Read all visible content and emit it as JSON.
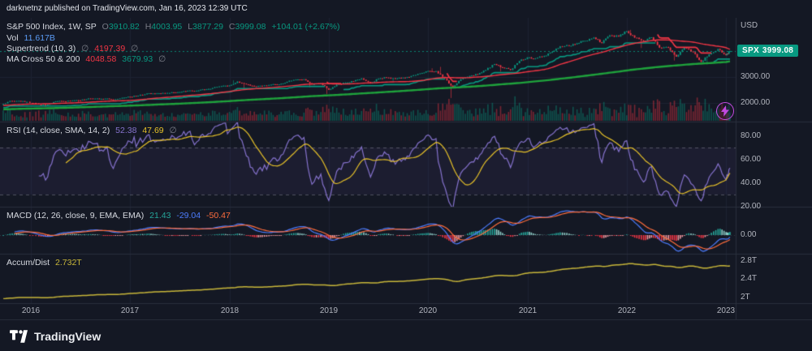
{
  "topbar": {
    "text": "darknetnz published on TradingView.com, Jan 16, 2023 12:39 UTC"
  },
  "footer": {
    "brand": "TradingView"
  },
  "glyphs": {
    "hidden": "∅"
  },
  "colors": {
    "up": "#089981",
    "down": "#f23645",
    "ma50": "#f23645",
    "ma200": "#1fa33c",
    "rsi": "#8673ce",
    "rsi_sma": "#e7c229",
    "macd": "#4d7dff",
    "signal": "#ff6d3d",
    "hist_up": "#26a69a",
    "hist_up_weak": "#8fd0ca",
    "hist_down": "#f23645",
    "hist_down_weak": "#f49aa1",
    "accdist": "#c9b73a",
    "vol_up": "rgba(8,153,129,0.45)",
    "vol_down": "rgba(242,54,69,0.45)",
    "grid": "#1c2232",
    "separator": "#2a2f3d",
    "badge_bg": "#089981",
    "flash": "#c24ae0"
  },
  "panes": {
    "price": {
      "legend": {
        "title": "S&P 500 Index, 1W, SP",
        "o_label": "O",
        "o": "3910.82",
        "h_label": "H",
        "h": "4003.95",
        "l_label": "L",
        "l": "3877.29",
        "c_label": "C",
        "c": "3999.08",
        "change": "+104.01 (+2.67%)",
        "vol_label": "Vol",
        "vol": "11.617B",
        "supertrend_label": "Supertrend (10, 3)",
        "supertrend_value": "4197.39",
        "ma_label": "MA Cross 50 & 200",
        "ma50_value": "4048.58",
        "ma200_value": "3679.93"
      },
      "axis": {
        "currency": "USD",
        "labels": [
          "3000.00",
          "2000.00"
        ],
        "badge": {
          "symbol": "SPX",
          "price": "3999.08"
        }
      }
    },
    "rsi": {
      "legend": {
        "title": "RSI (14, close, SMA, 14, 2)",
        "rsi_value": "52.38",
        "sma_value": "47.69"
      },
      "axis_labels": [
        "80.00",
        "60.00",
        "40.00",
        "20.00"
      ]
    },
    "macd": {
      "legend": {
        "title": "MACD (12, 26, close, 9, EMA, EMA)",
        "hist_value": "21.43",
        "macd_value": "-29.04",
        "signal_value": "-50.47"
      },
      "axis_labels": [
        "0.00"
      ]
    },
    "accdist": {
      "legend": {
        "title": "Accum/Dist",
        "value": "2.732T"
      },
      "axis_labels": [
        "2.8T",
        "2.4T",
        "2T"
      ]
    }
  },
  "time_axis": {
    "years": [
      "2016",
      "2017",
      "2018",
      "2019",
      "2020",
      "2021",
      "2022",
      "2023"
    ]
  },
  "chart_data": {
    "type": "candlestick",
    "title": "S&P 500 Index, 1W, SP",
    "interval": "1W",
    "x_axis": {
      "labels": [
        "2016",
        "2017",
        "2018",
        "2019",
        "2020",
        "2021",
        "2022",
        "2023"
      ]
    },
    "y_axis": {
      "currency": "USD",
      "visible_ticks": [
        3000,
        2000
      ]
    },
    "ohlc_last": {
      "open": 3910.82,
      "high": 4003.95,
      "low": 3877.29,
      "close": 3999.08,
      "change": 104.01,
      "change_pct": 2.67
    },
    "volume_last": "11.617B",
    "indicators": {
      "supertrend": {
        "params": [
          10,
          3
        ],
        "value": 4197.39
      },
      "ma_cross": {
        "ma50": 4048.58,
        "ma200": 3679.93
      },
      "rsi": {
        "params": [
          14,
          "close",
          "SMA",
          14,
          2
        ],
        "value": 52.38,
        "sma": 47.69,
        "bands": [
          70,
          30
        ],
        "scale_ticks": [
          80,
          60,
          40,
          20
        ]
      },
      "macd": {
        "params": [
          12,
          26,
          "close",
          9,
          "EMA",
          "EMA"
        ],
        "histogram": 21.43,
        "macd": -29.04,
        "signal": -50.47,
        "scale_ticks": [
          0
        ]
      },
      "accum_dist": {
        "value": "2.732T",
        "scale_ticks": [
          "2.8T",
          "2.4T",
          "2T"
        ]
      }
    },
    "monthly_close_anchors": [
      {
        "t": 2015.7,
        "c": 1920
      },
      {
        "t": 2015.79,
        "c": 2079
      },
      {
        "t": 2015.88,
        "c": 2080
      },
      {
        "t": 2015.96,
        "c": 2044
      },
      {
        "t": 2016.08,
        "c": 1940
      },
      {
        "t": 2016.17,
        "c": 1932,
        "lo": 1829
      },
      {
        "t": 2016.25,
        "c": 2060
      },
      {
        "t": 2016.33,
        "c": 2065
      },
      {
        "t": 2016.42,
        "c": 2097
      },
      {
        "t": 2016.5,
        "c": 2099,
        "lo": 1992
      },
      {
        "t": 2016.58,
        "c": 2174
      },
      {
        "t": 2016.67,
        "c": 2171
      },
      {
        "t": 2016.75,
        "c": 2168
      },
      {
        "t": 2016.83,
        "c": 2126
      },
      {
        "t": 2016.92,
        "c": 2199
      },
      {
        "t": 2017.0,
        "c": 2239
      },
      {
        "t": 2017.08,
        "c": 2279
      },
      {
        "t": 2017.17,
        "c": 2364
      },
      {
        "t": 2017.25,
        "c": 2363
      },
      {
        "t": 2017.33,
        "c": 2384
      },
      {
        "t": 2017.42,
        "c": 2412
      },
      {
        "t": 2017.5,
        "c": 2423
      },
      {
        "t": 2017.58,
        "c": 2470
      },
      {
        "t": 2017.67,
        "c": 2472
      },
      {
        "t": 2017.75,
        "c": 2519
      },
      {
        "t": 2017.83,
        "c": 2575
      },
      {
        "t": 2017.92,
        "c": 2648
      },
      {
        "t": 2018.0,
        "c": 2674
      },
      {
        "t": 2018.08,
        "c": 2824,
        "hi": 2872
      },
      {
        "t": 2018.17,
        "c": 2714,
        "lo": 2533
      },
      {
        "t": 2018.25,
        "c": 2641
      },
      {
        "t": 2018.33,
        "c": 2648
      },
      {
        "t": 2018.42,
        "c": 2705
      },
      {
        "t": 2018.5,
        "c": 2718
      },
      {
        "t": 2018.58,
        "c": 2816
      },
      {
        "t": 2018.67,
        "c": 2902
      },
      {
        "t": 2018.75,
        "c": 2914
      },
      {
        "t": 2018.83,
        "c": 2712,
        "lo": 2604
      },
      {
        "t": 2018.92,
        "c": 2760
      },
      {
        "t": 2019.0,
        "c": 2507,
        "lo": 2346
      },
      {
        "t": 2019.08,
        "c": 2704
      },
      {
        "t": 2019.17,
        "c": 2784
      },
      {
        "t": 2019.25,
        "c": 2834
      },
      {
        "t": 2019.33,
        "c": 2946
      },
      {
        "t": 2019.42,
        "c": 2752
      },
      {
        "t": 2019.5,
        "c": 2942
      },
      {
        "t": 2019.58,
        "c": 2980
      },
      {
        "t": 2019.67,
        "c": 2926,
        "lo": 2822
      },
      {
        "t": 2019.75,
        "c": 2977
      },
      {
        "t": 2019.83,
        "c": 3038
      },
      {
        "t": 2019.92,
        "c": 3141
      },
      {
        "t": 2020.0,
        "c": 3231
      },
      {
        "t": 2020.08,
        "c": 3226,
        "hi": 3337
      },
      {
        "t": 2020.17,
        "c": 2954,
        "hi": 3393
      },
      {
        "t": 2020.25,
        "c": 2585,
        "lo": 2191
      },
      {
        "t": 2020.33,
        "c": 2912
      },
      {
        "t": 2020.42,
        "c": 3044
      },
      {
        "t": 2020.5,
        "c": 3100
      },
      {
        "t": 2020.58,
        "c": 3271
      },
      {
        "t": 2020.67,
        "c": 3500
      },
      {
        "t": 2020.75,
        "c": 3363,
        "lo": 3209
      },
      {
        "t": 2020.83,
        "c": 3270
      },
      {
        "t": 2020.92,
        "c": 3622
      },
      {
        "t": 2021.0,
        "c": 3756
      },
      {
        "t": 2021.08,
        "c": 3714
      },
      {
        "t": 2021.17,
        "c": 3811
      },
      {
        "t": 2021.25,
        "c": 3973
      },
      {
        "t": 2021.33,
        "c": 4181
      },
      {
        "t": 2021.42,
        "c": 4204
      },
      {
        "t": 2021.5,
        "c": 4297
      },
      {
        "t": 2021.58,
        "c": 4395
      },
      {
        "t": 2021.67,
        "c": 4523
      },
      {
        "t": 2021.75,
        "c": 4307
      },
      {
        "t": 2021.83,
        "c": 4605
      },
      {
        "t": 2021.92,
        "c": 4567
      },
      {
        "t": 2022.0,
        "c": 4766
      },
      {
        "t": 2022.08,
        "c": 4516,
        "hi": 4818
      },
      {
        "t": 2022.17,
        "c": 4374,
        "lo": 4115
      },
      {
        "t": 2022.25,
        "c": 4530
      },
      {
        "t": 2022.33,
        "c": 4132
      },
      {
        "t": 2022.42,
        "c": 4132
      },
      {
        "t": 2022.5,
        "c": 3785,
        "lo": 3636
      },
      {
        "t": 2022.58,
        "c": 4130
      },
      {
        "t": 2022.67,
        "c": 3955
      },
      {
        "t": 2022.75,
        "c": 3586
      },
      {
        "t": 2022.83,
        "c": 3872,
        "lo": 3491
      },
      {
        "t": 2022.92,
        "c": 4080
      },
      {
        "t": 2023.0,
        "c": 3840
      },
      {
        "t": 2023.04,
        "c": 3999.08
      }
    ]
  }
}
